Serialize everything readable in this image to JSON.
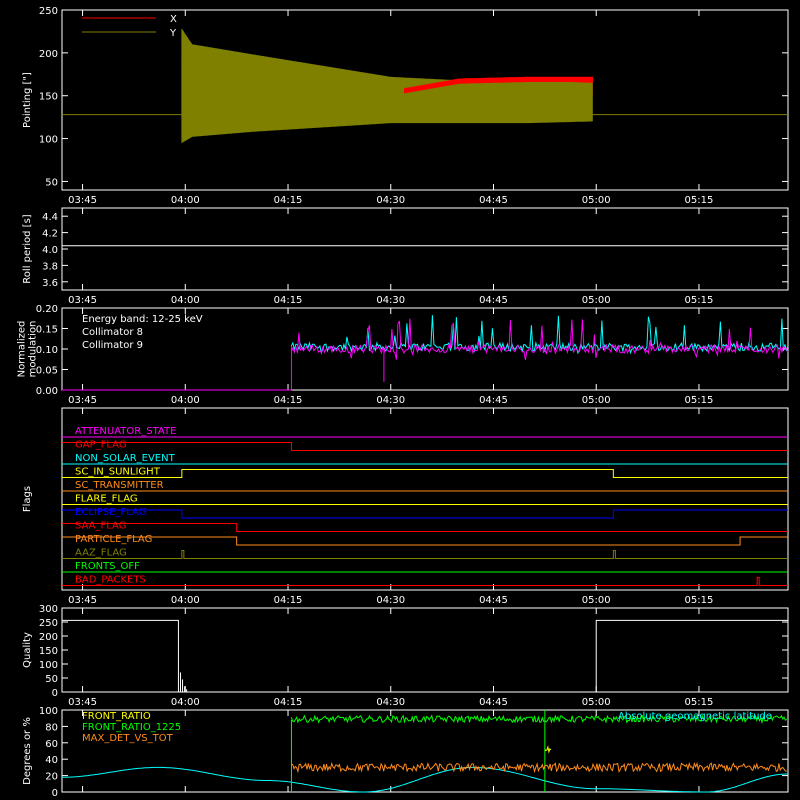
{
  "time_axis": {
    "ticks": [
      "03:45",
      "04:00",
      "04:15",
      "04:30",
      "04:45",
      "05:00",
      "05:15"
    ],
    "tick_minutes": [
      225,
      240,
      255,
      270,
      285,
      300,
      315
    ],
    "range_minutes": [
      222,
      328
    ]
  },
  "colors": {
    "x_series": "#ff0000",
    "y_series": "#7f7f00",
    "axes": "#ffffff",
    "cyan": "#00ffff",
    "magenta": "#ff00ff",
    "green": "#00ff00",
    "orange": "#ff8c1a",
    "yellow": "#ffff00",
    "blue": "#0000ff"
  },
  "chart_data": [
    {
      "type": "area",
      "panel": "pointing",
      "ylabel": "Pointing [\"]",
      "ylim": [
        40,
        250
      ],
      "yticks": [
        "50",
        "100",
        "150",
        "200",
        "250"
      ],
      "legend_placement": "top-left",
      "series": [
        {
          "name": "X",
          "color": "#ff0000",
          "start": 239.5,
          "end": 299.5,
          "base": 128,
          "envelope": [
            [
              239.5,
              125,
              195
            ],
            [
              241,
              108,
              188
            ],
            [
              250,
              110,
              175
            ],
            [
              260,
              118,
              165
            ],
            [
              270,
              126,
              156
            ],
            [
              280,
              146,
              170
            ],
            [
              290,
              148,
              172
            ],
            [
              299.5,
              150,
              172
            ]
          ]
        },
        {
          "name": "Y",
          "color": "#7f7f00",
          "start": 239.5,
          "end": 299.5,
          "base": 128,
          "envelope": [
            [
              239.5,
              95,
              228
            ],
            [
              241,
              102,
              210
            ],
            [
              250,
              108,
              198
            ],
            [
              260,
              113,
              185
            ],
            [
              270,
              118,
              172
            ],
            [
              280,
              118,
              168
            ],
            [
              290,
              118,
              168
            ],
            [
              299.5,
              120,
              165
            ]
          ]
        }
      ]
    },
    {
      "type": "line",
      "panel": "roll_period",
      "ylabel": "Roll period [s]",
      "ylim": [
        3.5,
        4.5
      ],
      "yticks": [
        "3.6",
        "3.8",
        "4.0",
        "4.2",
        "4.4"
      ],
      "series": [
        {
          "color": "#ffffff",
          "value": 4.04
        }
      ]
    },
    {
      "type": "line",
      "panel": "modulation",
      "ylabel": "Normalized\nmodulation",
      "ylim": [
        0,
        0.2
      ],
      "yticks": [
        "0.00",
        "0.05",
        "0.10",
        "0.15",
        "0.20"
      ],
      "annotation": "Energy band: 12-25 keV",
      "series": [
        {
          "name": "Collimator 8",
          "color": "#00ffff",
          "start": 255.5,
          "mean": 0.105
        },
        {
          "name": "Collimator 9",
          "color": "#ff00ff",
          "start": 255.5,
          "mean": 0.1,
          "pre_value": 0.0,
          "dip_at": 269,
          "dip_value": 0.02
        }
      ]
    },
    {
      "type": "line",
      "panel": "flags",
      "ylabel": "Flags",
      "flags": [
        {
          "name": "ATTENUATOR_STATE",
          "color": "#ff00ff",
          "transitions": []
        },
        {
          "name": "GAP_FLAG",
          "color": "#ff0000",
          "high_until": 255.5
        },
        {
          "name": "NON_SOLAR_EVENT",
          "color": "#00ffff",
          "transitions": []
        },
        {
          "name": "SC_IN_SUNLIGHT",
          "color": "#ffff00",
          "low_until": 239.5,
          "high_until": 302.5
        },
        {
          "name": "SC_TRANSMITTER",
          "color": "#ff8c1a",
          "transitions": []
        },
        {
          "name": "FLARE_FLAG",
          "color": "#ffff00",
          "transitions": []
        },
        {
          "name": "ECLIPSE_FLAG",
          "color": "#0000ff",
          "high_until": 239.5,
          "high_from": 302.5
        },
        {
          "name": "SAA_FLAG",
          "color": "#ff0000",
          "high_until": 247.5
        },
        {
          "name": "PARTICLE_FLAG",
          "color": "#ff8c1a",
          "high_until": 247.5,
          "high_from": 321
        },
        {
          "name": "AAZ_FLAG",
          "color": "#7f7f00",
          "pulses": [
            239.5,
            302.5
          ]
        },
        {
          "name": "FRONTS_OFF",
          "color": "#00ff00",
          "transitions": []
        },
        {
          "name": "BAD_PACKETS",
          "color": "#ff0000",
          "pulses": [
            323.5
          ]
        }
      ]
    },
    {
      "type": "line",
      "panel": "quality",
      "ylabel": "Quality",
      "ylim": [
        0,
        300
      ],
      "yticks": [
        "0",
        "50",
        "100",
        "150",
        "200",
        "250",
        "300"
      ],
      "series": [
        {
          "color": "#ffffff",
          "high_value": 256,
          "high_until": 239,
          "high_from": 300,
          "spikes": [
            [
              239.3,
              70
            ],
            [
              239.6,
              45
            ],
            [
              239.9,
              20
            ],
            [
              240.2,
              10
            ]
          ]
        }
      ]
    },
    {
      "type": "line",
      "panel": "ratios",
      "ylabel": "Degrees or %",
      "ylim": [
        0,
        100
      ],
      "yticks": [
        "0",
        "20",
        "40",
        "60",
        "80",
        "100"
      ],
      "series": [
        {
          "name": "FRONT_RATIO",
          "color": "#ffff00",
          "start": 292.5,
          "end": 293.5,
          "value": 52
        },
        {
          "name": "FRONT_RATIO_1225",
          "color": "#00ff00",
          "start": 255.5,
          "mean": 89,
          "drop_at": 292.5,
          "drop_to": 0
        },
        {
          "name": "MAX_DET_VS_TOT",
          "color": "#ff8c1a",
          "start": 255.5,
          "mean": 30
        },
        {
          "name": "Absolute geomagnetic latitude",
          "color": "#00ffff",
          "points": [
            [
              222,
              18
            ],
            [
              236,
              30
            ],
            [
              252,
              14
            ],
            [
              266,
              0
            ],
            [
              282,
              30
            ],
            [
              300,
              4
            ],
            [
              316,
              0
            ],
            [
              328,
              22
            ]
          ]
        }
      ]
    }
  ]
}
